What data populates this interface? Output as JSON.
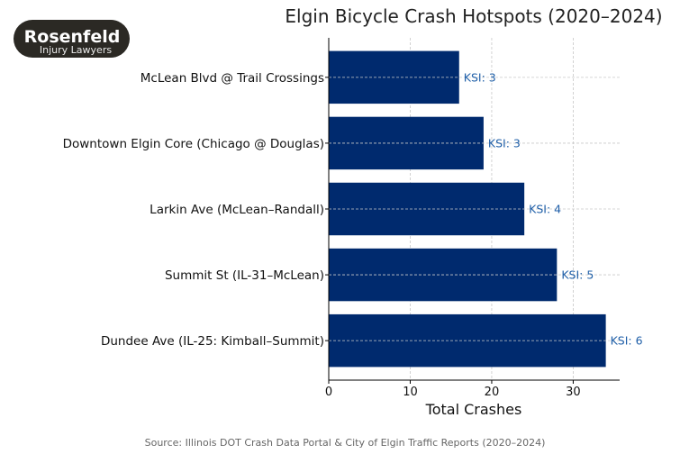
{
  "logo": {
    "name": "Rosenfeld",
    "tagline": "Injury Lawyers"
  },
  "chart_data": {
    "type": "bar",
    "orientation": "horizontal",
    "title": "Elgin Bicycle Crash Hotspots (2020–2024)",
    "xlabel": "Total Crashes",
    "ylabel": "",
    "categories": [
      "Dundee Ave (IL-25: Kimball–Summit)",
      "Summit St (IL-31–McLean)",
      "Larkin Ave (McLean–Randall)",
      "Downtown Elgin Core (Chicago @ Douglas)",
      "McLean Blvd @ Trail Crossings"
    ],
    "values": [
      34,
      28,
      24,
      19,
      16
    ],
    "data_labels": [
      "KSI: 6",
      "KSI: 5",
      "KSI: 4",
      "KSI: 3",
      "KSI: 3"
    ],
    "xlim": [
      0,
      35.7
    ],
    "xticks": [
      0,
      10,
      20,
      30
    ],
    "grid": true,
    "bar_color": "#002a6e",
    "label_color": "#1f5fa8"
  },
  "source": "Source: Illinois DOT Crash Data Portal & City of Elgin Traffic Reports (2020–2024)"
}
